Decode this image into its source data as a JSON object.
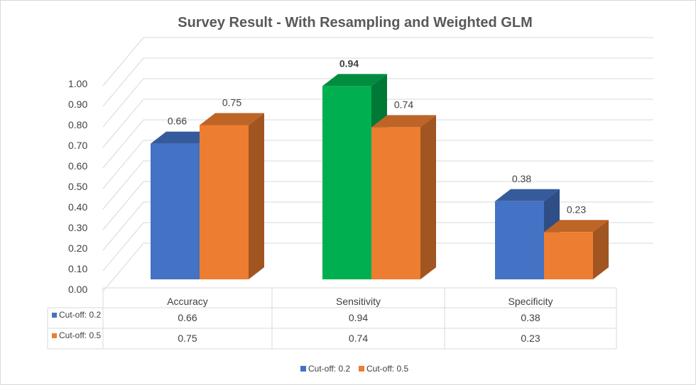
{
  "chart_data": {
    "type": "bar",
    "title": "Survey Result - With Resampling and Weighted GLM",
    "categories": [
      "Accuracy",
      "Sensitivity",
      "Specificity"
    ],
    "series": [
      {
        "name": "Cut-off: 0.2",
        "values": [
          0.66,
          0.94,
          0.38
        ],
        "color": "#4472C4"
      },
      {
        "name": "Cut-off: 0.5",
        "values": [
          0.75,
          0.74,
          0.23
        ],
        "color": "#ED7D31"
      }
    ],
    "highlight": {
      "series": 0,
      "category": 1,
      "color": "#00B050"
    },
    "data_labels": [
      [
        "0.66",
        "0.94",
        "0.38"
      ],
      [
        "0.75",
        "0.74",
        "0.23"
      ]
    ],
    "yticks": [
      "0.00",
      "0.10",
      "0.20",
      "0.30",
      "0.40",
      "0.50",
      "0.60",
      "0.70",
      "0.80",
      "0.90",
      "1.00"
    ],
    "ylim": [
      0,
      1.0
    ],
    "table_values": [
      [
        "0.66",
        "0.94",
        "0.38"
      ],
      [
        "0.75",
        "0.74",
        "0.23"
      ]
    ],
    "legend_position": "bottom",
    "grid": true,
    "style": "3d-clustered-column with data table"
  }
}
